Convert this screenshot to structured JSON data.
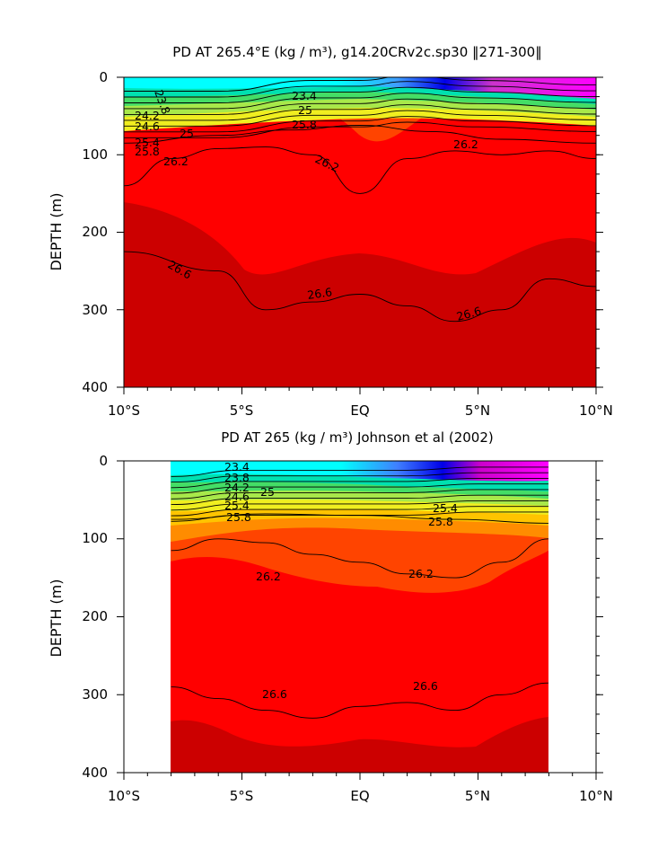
{
  "chart_data": [
    {
      "type": "heatmap",
      "title": "PD AT 265.4°E (kg / m³), g14.20CRv2c.sp30 ‖271-300‖",
      "xlabel": "",
      "ylabel": "DEPTH (m)",
      "xlim": [
        -10,
        10
      ],
      "ylim": [
        400,
        0
      ],
      "data_xlim": [
        -10,
        10
      ],
      "x_ticks": [
        "10°S",
        "5°S",
        "EQ",
        "5°N",
        "10°N"
      ],
      "y_ticks": [
        "0",
        "100",
        "200",
        "300",
        "400"
      ],
      "contour_labels": [
        "23.4",
        "23.8",
        "24.2",
        "24.6",
        "25",
        "25.4",
        "25.8",
        "26.2",
        "26.6"
      ],
      "surface_colors": {
        "south": "#00ffff",
        "north": "#ff00ff"
      },
      "deep_color": "#cc0000",
      "isopycnals": [
        {
          "value": 25.8,
          "x": [
            -10,
            -6,
            -3,
            0,
            3,
            6,
            10
          ],
          "depth": [
            85,
            75,
            68,
            62,
            70,
            80,
            85
          ]
        },
        {
          "value": 26.2,
          "x": [
            -10,
            -8,
            -6,
            -4,
            -2,
            0,
            2,
            4,
            6,
            8,
            10
          ],
          "depth": [
            140,
            105,
            92,
            90,
            100,
            150,
            105,
            95,
            100,
            95,
            105
          ]
        },
        {
          "value": 26.6,
          "x": [
            -10,
            -6,
            -4,
            -2,
            0,
            2,
            4,
            6,
            8,
            10
          ],
          "depth": [
            225,
            250,
            300,
            290,
            280,
            295,
            315,
            300,
            260,
            270
          ]
        }
      ]
    },
    {
      "type": "heatmap",
      "title": "PD AT 265 (kg / m³) Johnson et al (2002)",
      "xlabel": "",
      "ylabel": "DEPTH (m)",
      "xlim": [
        -10,
        10
      ],
      "ylim": [
        400,
        0
      ],
      "data_xlim": [
        -8,
        8
      ],
      "x_ticks": [
        "10°S",
        "5°S",
        "EQ",
        "5°N",
        "10°N"
      ],
      "y_ticks": [
        "0",
        "100",
        "200",
        "300",
        "400"
      ],
      "contour_labels": [
        "23.4",
        "23.8",
        "24.2",
        "24.6",
        "25",
        "25.4",
        "25.8",
        "26.2",
        "26.6"
      ],
      "surface_colors": {
        "south": "#00ffff",
        "north": "#ff00ff"
      },
      "deep_color": "#cc0000",
      "isopycnals": [
        {
          "value": 25.8,
          "x": [
            -8,
            -4,
            0,
            4,
            8
          ],
          "depth": [
            75,
            68,
            70,
            75,
            80
          ]
        },
        {
          "value": 26.2,
          "x": [
            -8,
            -6,
            -4,
            -2,
            0,
            2,
            4,
            6,
            8
          ],
          "depth": [
            115,
            100,
            105,
            120,
            130,
            145,
            150,
            130,
            100
          ]
        },
        {
          "value": 26.6,
          "x": [
            -8,
            -6,
            -4,
            -2,
            0,
            2,
            4,
            6,
            8
          ],
          "depth": [
            290,
            305,
            320,
            330,
            315,
            310,
            320,
            300,
            285
          ]
        }
      ]
    }
  ]
}
